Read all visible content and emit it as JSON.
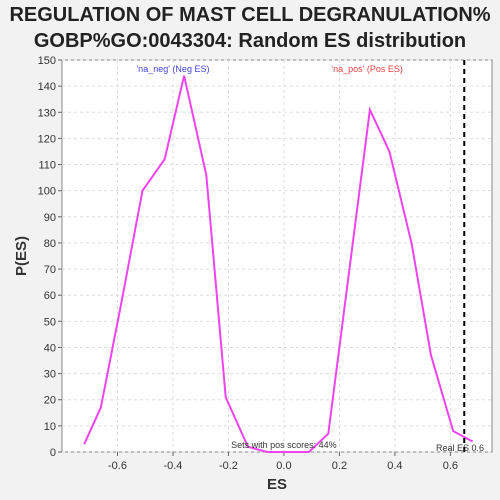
{
  "chart_data": {
    "type": "line",
    "title_lines": [
      "REGULATION OF MAST CELL DEGRANULATION%",
      "GOBP%GO:0043304: Random ES distribution"
    ],
    "xlabel": "ES",
    "ylabel": "P(ES)",
    "xlim": [
      -0.8,
      0.75
    ],
    "ylim": [
      0,
      150
    ],
    "xticks": [
      -0.6,
      -0.4,
      -0.2,
      0.0,
      0.2,
      0.4,
      0.6
    ],
    "yticks": [
      0,
      10,
      20,
      30,
      40,
      50,
      60,
      70,
      80,
      90,
      100,
      110,
      120,
      130,
      140,
      150
    ],
    "series": [
      {
        "name": "Random ES distribution",
        "color": "#ee44ee",
        "x": [
          -0.72,
          -0.66,
          -0.59,
          -0.51,
          -0.43,
          -0.36,
          -0.28,
          -0.21,
          -0.13,
          -0.06,
          0.02,
          0.09,
          0.16,
          0.31,
          0.38,
          0.46,
          0.53,
          0.61,
          0.68
        ],
        "y": [
          3,
          17,
          55,
          100,
          112,
          144,
          106,
          21,
          2,
          0,
          0,
          0,
          7,
          131,
          115,
          80,
          37,
          8,
          4
        ]
      }
    ],
    "real_es": {
      "value": 0.65,
      "label": "Real ES 0.6"
    },
    "annotations": {
      "neg": {
        "text": "'na_neg' (Neg ES)",
        "color": "#4444dd"
      },
      "pos": {
        "text": "'na_pos' (Pos ES)",
        "color": "#ee4444"
      },
      "footer": "Sets with pos scores: 44%"
    }
  }
}
